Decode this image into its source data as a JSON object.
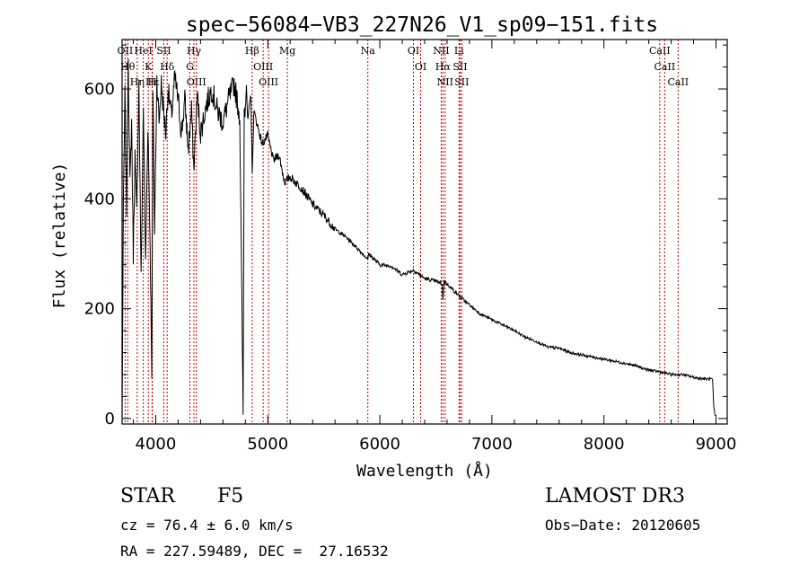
{
  "chart_data": {
    "type": "line",
    "title": "spec−56084−VB3_227N26_V1_sp09−151.fits",
    "xlabel": "Wavelength (Å)",
    "ylabel": "Flux (relative)",
    "xlim": [
      3700,
      9100
    ],
    "ylim": [
      -10,
      690
    ],
    "xticks": [
      "4000",
      "5000",
      "6000",
      "7000",
      "8000",
      "9000"
    ],
    "yticks": [
      "0",
      "200",
      "400",
      "600"
    ],
    "colors": {
      "line": "#000000",
      "marker": "#cc0000",
      "axes": "#000000"
    },
    "series": [
      {
        "name": "spectrum",
        "x": [
          3700,
          3712,
          3725,
          3740,
          3755,
          3770,
          3785,
          3800,
          3815,
          3830,
          3850,
          3870,
          3890,
          3910,
          3930,
          3950,
          3965,
          3975,
          3990,
          4010,
          4030,
          4050,
          4070,
          4090,
          4110,
          4140,
          4170,
          4200,
          4230,
          4260,
          4290,
          4320,
          4340,
          4370,
          4400,
          4450,
          4500,
          4550,
          4600,
          4650,
          4700,
          4750,
          4780,
          4790,
          4800,
          4810,
          4820,
          4850,
          4862,
          4875,
          4900,
          4950,
          5000,
          5050,
          5100,
          5150,
          5200,
          5300,
          5400,
          5500,
          5600,
          5700,
          5800,
          5893,
          5900,
          6000,
          6100,
          6200,
          6300,
          6400,
          6500,
          6555,
          6563,
          6575,
          6650,
          6750,
          6900,
          7000,
          7100,
          7200,
          7300,
          7400,
          7500,
          7600,
          7700,
          7800,
          7900,
          8000,
          8100,
          8200,
          8300,
          8400,
          8500,
          8600,
          8700,
          8800,
          8900,
          8960,
          8970,
          8980,
          8992
        ],
        "y": [
          10,
          390,
          590,
          380,
          660,
          420,
          540,
          300,
          480,
          370,
          610,
          250,
          570,
          280,
          540,
          320,
          90,
          590,
          340,
          620,
          540,
          610,
          560,
          520,
          600,
          550,
          620,
          580,
          520,
          580,
          490,
          560,
          450,
          590,
          520,
          570,
          600,
          560,
          540,
          580,
          610,
          550,
          5,
          560,
          570,
          610,
          540,
          590,
          440,
          560,
          540,
          500,
          515,
          470,
          480,
          430,
          440,
          420,
          390,
          370,
          345,
          330,
          310,
          290,
          300,
          280,
          278,
          262,
          270,
          255,
          250,
          245,
          215,
          250,
          235,
          215,
          190,
          180,
          170,
          160,
          148,
          140,
          130,
          128,
          120,
          116,
          112,
          108,
          104,
          100,
          95,
          88,
          85,
          80,
          80,
          75,
          72,
          72,
          68,
          20,
          5
        ]
      }
    ],
    "lines": [
      {
        "name": "OII",
        "x": 3727
      },
      {
        "name": "Hθ",
        "x": 3750
      },
      {
        "name": "Hη",
        "x": 3835
      },
      {
        "name": "HeI",
        "x": 3889
      },
      {
        "name": "K",
        "x": 3934
      },
      {
        "name": "H",
        "x": 3968
      },
      {
        "name": "Hε",
        "x": 3970
      },
      {
        "name": "SII",
        "x": 4072
      },
      {
        "name": "Hδ",
        "x": 4102
      },
      {
        "name": "Hγ",
        "x": 4341
      },
      {
        "name": "G",
        "x": 4305
      },
      {
        "name": "OIII",
        "x": 4363
      },
      {
        "name": "Hβ",
        "x": 4861
      },
      {
        "name": "OIII",
        "x": 4959
      },
      {
        "name": "OIII",
        "x": 5007
      },
      {
        "name": "Mg",
        "x": 5175
      },
      {
        "name": "Na",
        "x": 5893
      },
      {
        "name": "OI",
        "x": 6300
      },
      {
        "name": "OI",
        "x": 6364
      },
      {
        "name": "NII",
        "x": 6548
      },
      {
        "name": "Hα",
        "x": 6563
      },
      {
        "name": "NII",
        "x": 6583
      },
      {
        "name": "Li",
        "x": 6707
      },
      {
        "name": "SII",
        "x": 6716
      },
      {
        "name": "SII",
        "x": 6731
      },
      {
        "name": "CaII",
        "x": 8498
      },
      {
        "name": "CaII",
        "x": 8542
      },
      {
        "name": "CaII",
        "x": 8662
      }
    ]
  },
  "info": {
    "class": "STAR",
    "subclass": "F5",
    "survey": "LAMOST DR3",
    "cz": "cz = 76.4 ± 6.0 km/s",
    "obs_date": "Obs−Date: 20120605",
    "coords": "RA = 227.59489, DEC =  27.16532"
  }
}
